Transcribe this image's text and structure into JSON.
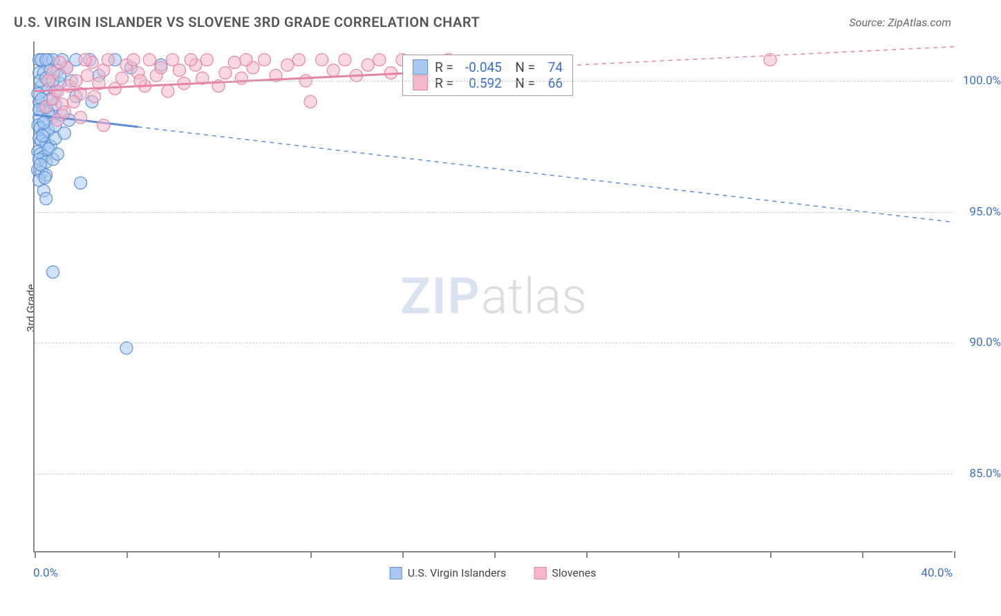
{
  "header": {
    "title": "U.S. VIRGIN ISLANDER VS SLOVENE 3RD GRADE CORRELATION CHART",
    "source": "Source: ZipAtlas.com"
  },
  "chart": {
    "type": "scatter",
    "ylabel": "3rd Grade",
    "xlim": [
      0,
      40
    ],
    "ylim": [
      82,
      101.5
    ],
    "x_ticks_major": [
      0,
      40
    ],
    "x_ticks_minor": [
      4,
      8,
      12,
      16,
      20,
      24,
      28,
      32,
      36
    ],
    "x_tick_labels": {
      "0": "0.0%",
      "40": "40.0%"
    },
    "y_ticks": [
      85,
      90,
      95,
      100
    ],
    "y_tick_labels": {
      "85": "85.0%",
      "90": "90.0%",
      "95": "95.0%",
      "100": "100.0%"
    },
    "grid_color": "#cccccc",
    "axis_color": "#888888",
    "background_color": "#ffffff",
    "marker_radius": 9,
    "marker_opacity": 0.55,
    "series": [
      {
        "name": "U.S. Virgin Islanders",
        "color_fill": "#a8c8f0",
        "color_stroke": "#5a8fd6",
        "R": "-0.045",
        "N": "74",
        "trend": {
          "x1": 0,
          "y1": 98.7,
          "x2": 40,
          "y2": 94.6,
          "solid_until_x": 4.5
        },
        "points": [
          [
            0.2,
            100.8
          ],
          [
            0.3,
            100.8
          ],
          [
            0.6,
            100.8
          ],
          [
            1.2,
            100.8
          ],
          [
            1.8,
            100.8
          ],
          [
            2.4,
            100.8
          ],
          [
            0.8,
            100.8
          ],
          [
            0.5,
            100.8
          ],
          [
            0.2,
            100.3
          ],
          [
            0.4,
            100.3
          ],
          [
            0.7,
            100.4
          ],
          [
            1.0,
            100.4
          ],
          [
            1.4,
            100.5
          ],
          [
            3.5,
            100.8
          ],
          [
            4.2,
            100.5
          ],
          [
            5.5,
            100.6
          ],
          [
            0.3,
            99.8
          ],
          [
            0.6,
            99.7
          ],
          [
            0.9,
            99.6
          ],
          [
            1.1,
            99.9
          ],
          [
            0.2,
            99.2
          ],
          [
            0.4,
            99.0
          ],
          [
            0.7,
            99.3
          ],
          [
            0.35,
            98.9
          ],
          [
            0.2,
            98.6
          ],
          [
            0.5,
            98.5
          ],
          [
            0.8,
            98.6
          ],
          [
            1.2,
            98.7
          ],
          [
            0.15,
            98.3
          ],
          [
            0.25,
            98.2
          ],
          [
            0.4,
            98.0
          ],
          [
            0.6,
            98.1
          ],
          [
            0.2,
            97.8
          ],
          [
            0.3,
            97.7
          ],
          [
            0.5,
            97.6
          ],
          [
            0.7,
            97.5
          ],
          [
            0.9,
            97.8
          ],
          [
            0.15,
            97.3
          ],
          [
            0.25,
            97.2
          ],
          [
            0.4,
            97.1
          ],
          [
            0.2,
            97.0
          ],
          [
            0.5,
            96.9
          ],
          [
            0.8,
            97.0
          ],
          [
            1.8,
            99.4
          ],
          [
            2.5,
            99.2
          ],
          [
            0.14,
            96.6
          ],
          [
            0.3,
            96.5
          ],
          [
            0.5,
            96.4
          ],
          [
            0.2,
            96.2
          ],
          [
            0.4,
            95.8
          ],
          [
            2.0,
            96.1
          ],
          [
            0.5,
            95.5
          ],
          [
            4.0,
            89.8
          ],
          [
            0.8,
            92.7
          ],
          [
            0.15,
            99.5
          ],
          [
            0.3,
            99.3
          ],
          [
            0.6,
            98.8
          ],
          [
            0.9,
            99.1
          ],
          [
            1.5,
            98.5
          ],
          [
            0.25,
            100.0
          ],
          [
            0.5,
            100.1
          ],
          [
            0.8,
            100.0
          ],
          [
            1.1,
            100.2
          ],
          [
            1.6,
            100.0
          ],
          [
            2.8,
            100.2
          ],
          [
            0.2,
            98.9
          ],
          [
            0.4,
            98.4
          ],
          [
            0.35,
            97.9
          ],
          [
            0.6,
            97.4
          ],
          [
            0.25,
            96.8
          ],
          [
            0.45,
            96.3
          ],
          [
            0.9,
            98.3
          ],
          [
            1.3,
            98.0
          ],
          [
            1.0,
            97.2
          ]
        ]
      },
      {
        "name": "Slovenes",
        "color_fill": "#f5b8cb",
        "color_stroke": "#e583a5",
        "R": "0.592",
        "N": "66",
        "trend": {
          "x1": 0,
          "y1": 99.6,
          "x2": 40,
          "y2": 101.3,
          "solid_until_x": 20
        },
        "points": [
          [
            0.5,
            99.0
          ],
          [
            0.8,
            99.3
          ],
          [
            1.2,
            99.1
          ],
          [
            1.0,
            99.6
          ],
          [
            1.5,
            99.8
          ],
          [
            1.8,
            100.0
          ],
          [
            2.0,
            99.5
          ],
          [
            2.3,
            100.2
          ],
          [
            2.5,
            100.7
          ],
          [
            2.8,
            99.9
          ],
          [
            3.0,
            100.4
          ],
          [
            3.2,
            100.8
          ],
          [
            3.5,
            99.7
          ],
          [
            3.8,
            100.1
          ],
          [
            4.0,
            100.6
          ],
          [
            4.3,
            100.8
          ],
          [
            4.5,
            100.3
          ],
          [
            4.8,
            99.8
          ],
          [
            5.0,
            100.8
          ],
          [
            5.3,
            100.2
          ],
          [
            5.5,
            100.5
          ],
          [
            5.8,
            99.6
          ],
          [
            6.0,
            100.8
          ],
          [
            6.3,
            100.4
          ],
          [
            6.5,
            99.9
          ],
          [
            7.0,
            100.6
          ],
          [
            7.3,
            100.1
          ],
          [
            7.5,
            100.8
          ],
          [
            8.0,
            99.8
          ],
          [
            8.3,
            100.3
          ],
          [
            8.7,
            100.7
          ],
          [
            9.0,
            100.1
          ],
          [
            9.5,
            100.5
          ],
          [
            10.0,
            100.8
          ],
          [
            10.5,
            100.2
          ],
          [
            11.0,
            100.6
          ],
          [
            11.5,
            100.8
          ],
          [
            12.0,
            99.2
          ],
          [
            12.5,
            100.8
          ],
          [
            13.0,
            100.4
          ],
          [
            13.5,
            100.8
          ],
          [
            14.0,
            100.2
          ],
          [
            14.5,
            100.6
          ],
          [
            15.0,
            100.8
          ],
          [
            15.5,
            100.3
          ],
          [
            16.0,
            100.8
          ],
          [
            17.0,
            100.5
          ],
          [
            18.0,
            100.8
          ],
          [
            19.0,
            100.4
          ],
          [
            20.0,
            100.6
          ],
          [
            1.0,
            98.5
          ],
          [
            1.3,
            98.8
          ],
          [
            2.0,
            98.6
          ],
          [
            3.0,
            98.3
          ],
          [
            0.8,
            100.3
          ],
          [
            1.4,
            100.5
          ],
          [
            0.6,
            100.0
          ],
          [
            1.1,
            100.7
          ],
          [
            2.2,
            100.8
          ],
          [
            4.6,
            100.0
          ],
          [
            6.8,
            100.8
          ],
          [
            9.2,
            100.8
          ],
          [
            11.8,
            100.0
          ],
          [
            32.0,
            100.8
          ],
          [
            1.7,
            99.2
          ],
          [
            2.6,
            99.4
          ]
        ]
      }
    ],
    "watermark": {
      "part1": "ZIP",
      "part2": "atlas"
    }
  },
  "legend_bottom": {
    "items": [
      {
        "label": "U.S. Virgin Islanders",
        "fill": "#a8c8f0",
        "stroke": "#5a8fd6"
      },
      {
        "label": "Slovenes",
        "fill": "#f5b8cb",
        "stroke": "#e583a5"
      }
    ]
  }
}
